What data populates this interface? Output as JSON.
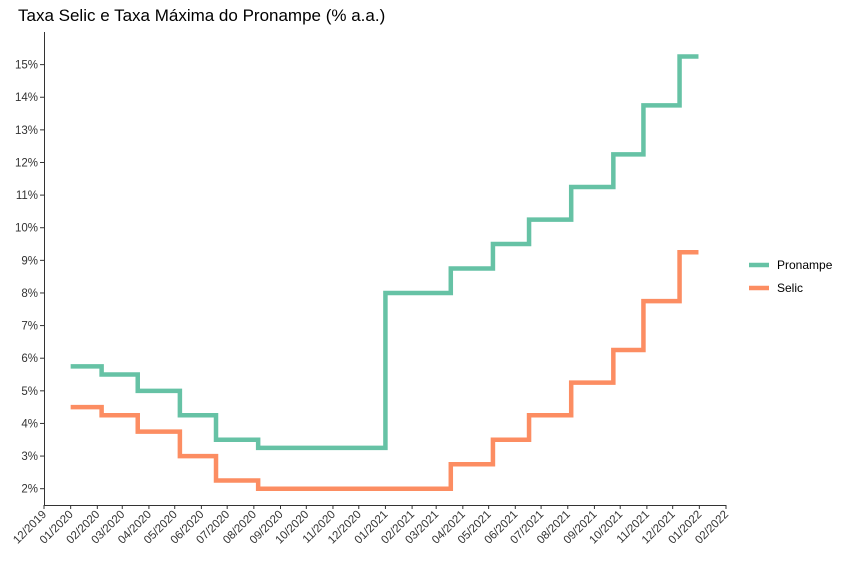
{
  "chart_data": {
    "type": "line",
    "title": "Taxa Selic e Taxa Máxima do Pronampe (% a.a.)",
    "xlabel": "",
    "ylabel": "",
    "x_axis_type": "date",
    "step": true,
    "y_ticks": [
      "2%",
      "3%",
      "4%",
      "5%",
      "6%",
      "7%",
      "8%",
      "9%",
      "10%",
      "11%",
      "12%",
      "13%",
      "14%",
      "15%"
    ],
    "ylim": [
      1.5,
      16.0
    ],
    "x_ticks": [
      "12/2019",
      "01/2020",
      "02/2020",
      "03/2020",
      "04/2020",
      "05/2020",
      "06/2020",
      "07/2020",
      "08/2020",
      "09/2020",
      "10/2020",
      "11/2020",
      "12/2020",
      "01/2021",
      "02/2021",
      "03/2021",
      "04/2021",
      "05/2021",
      "06/2021",
      "07/2021",
      "08/2021",
      "09/2021",
      "10/2021",
      "11/2021",
      "12/2021",
      "01/2022",
      "02/2022"
    ],
    "x_tick_dates": [
      "2019-12-01",
      "2020-01-01",
      "2020-02-01",
      "2020-03-01",
      "2020-04-01",
      "2020-05-01",
      "2020-06-01",
      "2020-07-01",
      "2020-08-01",
      "2020-09-01",
      "2020-10-01",
      "2020-11-01",
      "2020-12-01",
      "2021-01-01",
      "2021-02-01",
      "2021-03-01",
      "2021-04-01",
      "2021-05-01",
      "2021-06-01",
      "2021-07-01",
      "2021-08-01",
      "2021-09-01",
      "2021-10-01",
      "2021-11-01",
      "2021-12-01",
      "2022-01-01",
      "2022-02-01"
    ],
    "xlim": [
      "2019-12-01",
      "2022-02-01"
    ],
    "grid": false,
    "legend_position": "right",
    "series": [
      {
        "name": "Pronampe",
        "color": "#66c2a5",
        "points": [
          [
            "2020-01-01",
            5.75
          ],
          [
            "2020-02-06",
            5.5
          ],
          [
            "2020-03-19",
            5.0
          ],
          [
            "2020-05-07",
            4.25
          ],
          [
            "2020-06-18",
            3.5
          ],
          [
            "2020-08-06",
            3.25
          ],
          [
            "2021-01-01",
            8.0
          ],
          [
            "2021-03-18",
            8.75
          ],
          [
            "2021-05-06",
            9.5
          ],
          [
            "2021-06-17",
            10.25
          ],
          [
            "2021-08-05",
            11.25
          ],
          [
            "2021-09-23",
            12.25
          ],
          [
            "2021-10-28",
            13.75
          ],
          [
            "2021-12-09",
            15.25
          ],
          [
            "2021-12-31",
            15.25
          ]
        ]
      },
      {
        "name": "Selic",
        "color": "#fc8d62",
        "points": [
          [
            "2020-01-01",
            4.5
          ],
          [
            "2020-02-06",
            4.25
          ],
          [
            "2020-03-19",
            3.75
          ],
          [
            "2020-05-07",
            3.0
          ],
          [
            "2020-06-18",
            2.25
          ],
          [
            "2020-08-06",
            2.0
          ],
          [
            "2021-03-18",
            2.75
          ],
          [
            "2021-05-06",
            3.5
          ],
          [
            "2021-06-17",
            4.25
          ],
          [
            "2021-08-05",
            5.25
          ],
          [
            "2021-09-23",
            6.25
          ],
          [
            "2021-10-28",
            7.75
          ],
          [
            "2021-12-09",
            9.25
          ],
          [
            "2021-12-31",
            9.25
          ]
        ]
      }
    ]
  }
}
